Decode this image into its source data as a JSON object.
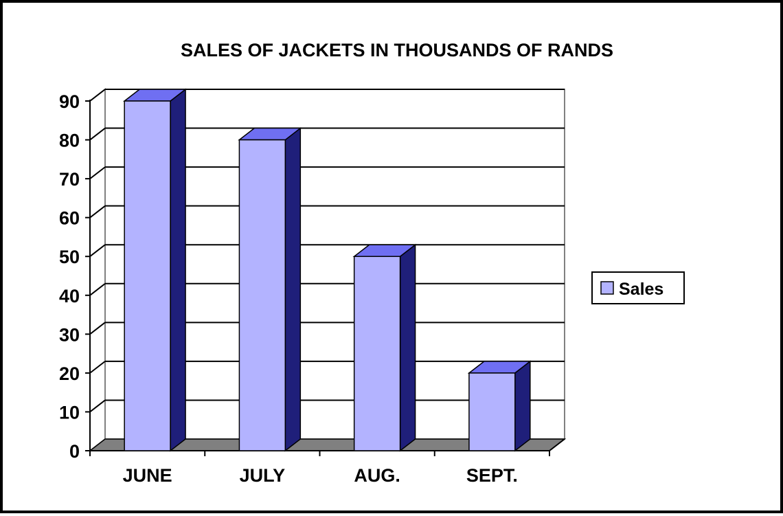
{
  "chart_data": {
    "type": "bar",
    "title": "SALES OF JACKETS IN THOUSANDS OF RANDS",
    "categories": [
      "JUNE",
      "JULY",
      "AUG.",
      "SEPT."
    ],
    "series": [
      {
        "name": "Sales",
        "values": [
          90,
          80,
          50,
          20
        ]
      }
    ],
    "yticks": [
      "0",
      "10",
      "20",
      "30",
      "40",
      "50",
      "60",
      "70",
      "80",
      "90"
    ],
    "ylim": [
      0,
      90
    ],
    "grid": true,
    "legend": "right",
    "three_d": true,
    "colors": {
      "bar_front": "#b3b3ff",
      "bar_side": "#1f1f7a",
      "bar_top": "#6f6ff2",
      "floor": "#808080",
      "wall": "#ffffff"
    }
  }
}
